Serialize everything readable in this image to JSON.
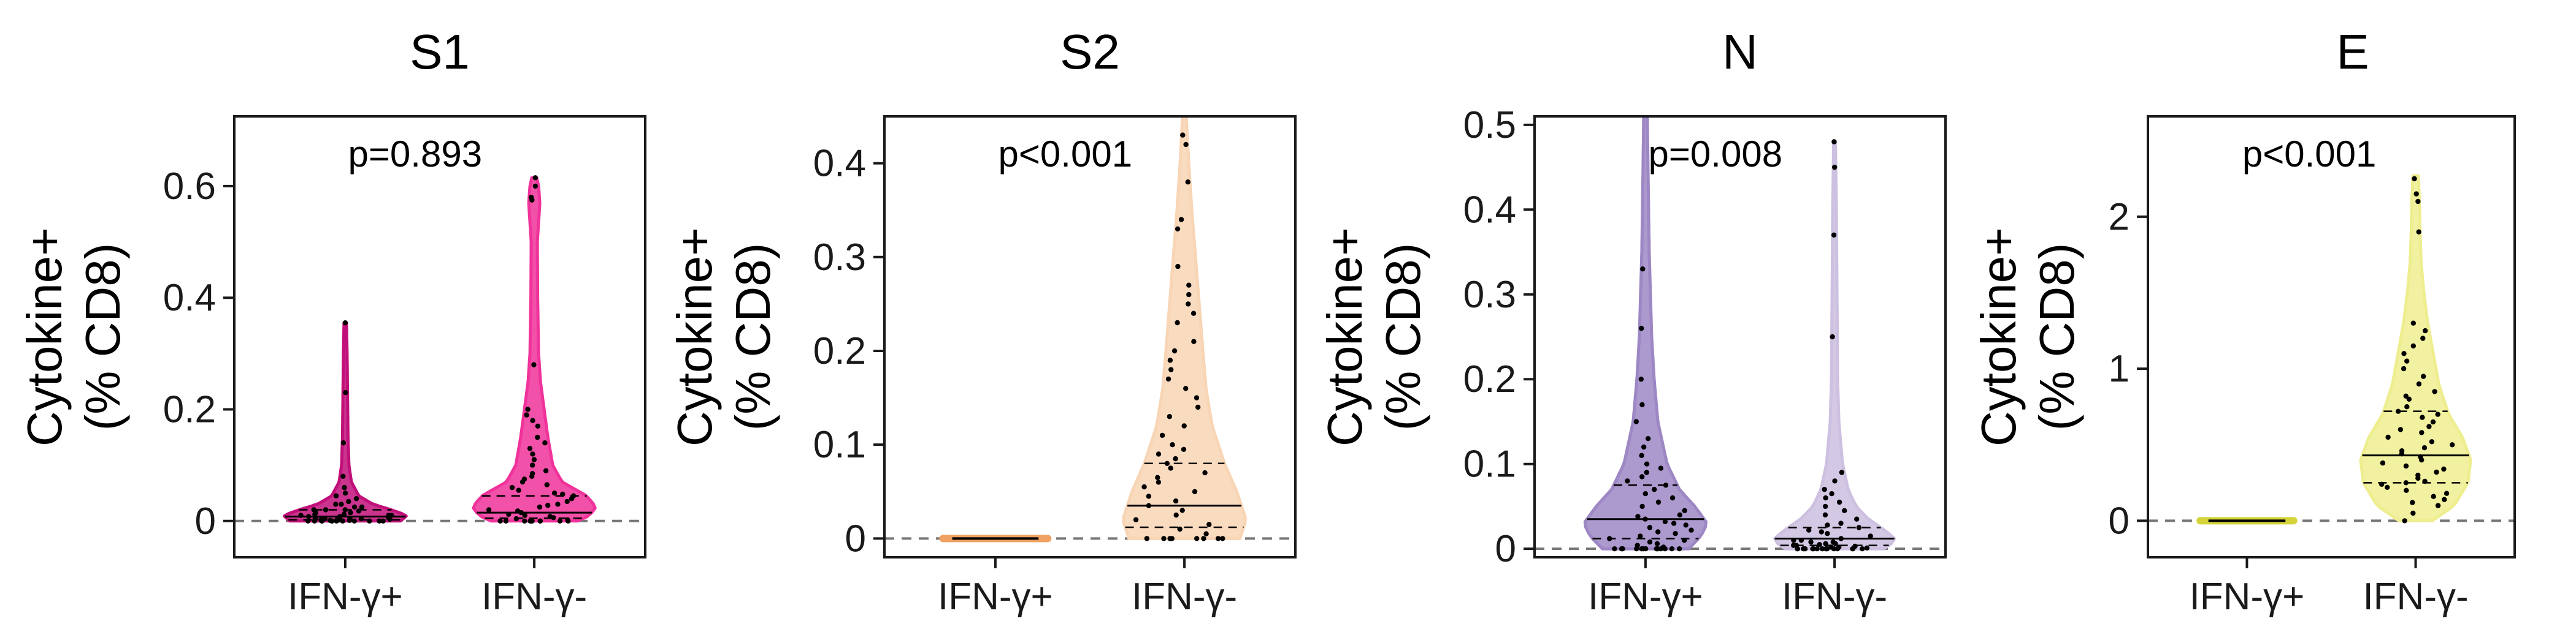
{
  "chart_data": [
    {
      "type": "violin",
      "title": "S1",
      "ylabel_line1": "Cytokine+",
      "ylabel_line2": "(% CD8)",
      "categories": [
        "IFN-γ+",
        "IFN-γ-"
      ],
      "ylim": [
        -0.065,
        0.725
      ],
      "yticks": [
        0,
        0.2,
        0.4,
        0.6
      ],
      "ytick_labels": [
        "0",
        "0.2",
        "0.4",
        "0.6"
      ],
      "annotation": "p=0.893",
      "colors": [
        "#c1107a",
        "#f0339a"
      ],
      "series": [
        {
          "name": "IFN-γ+",
          "max": 0.355,
          "quartiles": [
            0.002,
            0.008,
            0.02
          ],
          "shape": [
            [
              0,
              0.9
            ],
            [
              0.01,
              1.0
            ],
            [
              0.02,
              0.75
            ],
            [
              0.03,
              0.45
            ],
            [
              0.045,
              0.22
            ],
            [
              0.07,
              0.1
            ],
            [
              0.1,
              0.06
            ],
            [
              0.15,
              0.045
            ],
            [
              0.2,
              0.04
            ],
            [
              0.25,
              0.035
            ],
            [
              0.3,
              0.03
            ],
            [
              0.355,
              0.02
            ]
          ],
          "points": [
            0.355,
            0.23,
            0.14,
            0.08,
            0.06,
            0.05,
            0.045,
            0.04,
            0.035,
            0.03,
            0.03,
            0.025,
            0.025,
            0.02,
            0.02,
            0.02,
            0.018,
            0.015,
            0.015,
            0.012,
            0.012,
            0.01,
            0.01,
            0.01,
            0.008,
            0.008,
            0.006,
            0.006,
            0.005,
            0.005,
            0.004,
            0.004,
            0.003,
            0.003,
            0.002,
            0.002,
            0.001,
            0.001,
            0,
            0,
            0,
            0,
            0,
            0,
            0,
            0,
            0,
            0,
            0,
            0
          ]
        },
        {
          "name": "IFN-γ-",
          "max": 0.615,
          "quartiles": [
            0.005,
            0.015,
            0.045
          ],
          "shape": [
            [
              0,
              0.7
            ],
            [
              0.01,
              0.9
            ],
            [
              0.025,
              1.0
            ],
            [
              0.045,
              0.85
            ],
            [
              0.07,
              0.45
            ],
            [
              0.1,
              0.3
            ],
            [
              0.15,
              0.22
            ],
            [
              0.2,
              0.16
            ],
            [
              0.25,
              0.1
            ],
            [
              0.3,
              0.07
            ],
            [
              0.4,
              0.055
            ],
            [
              0.5,
              0.05
            ],
            [
              0.57,
              0.09
            ],
            [
              0.6,
              0.07
            ],
            [
              0.615,
              0.04
            ]
          ],
          "points": [
            0.615,
            0.6,
            0.58,
            0.575,
            0.28,
            0.2,
            0.19,
            0.18,
            0.17,
            0.15,
            0.14,
            0.13,
            0.12,
            0.11,
            0.1,
            0.09,
            0.085,
            0.08,
            0.075,
            0.07,
            0.065,
            0.06,
            0.055,
            0.05,
            0.048,
            0.045,
            0.04,
            0.035,
            0.03,
            0.028,
            0.025,
            0.02,
            0.018,
            0.015,
            0.012,
            0.01,
            0.008,
            0.006,
            0.004,
            0.002,
            0,
            0,
            0,
            0,
            0,
            0,
            0,
            0,
            0,
            0
          ]
        }
      ]
    },
    {
      "type": "violin",
      "title": "S2",
      "ylabel_line1": "Cytokine+",
      "ylabel_line2": "(% CD8)",
      "categories": [
        "IFN-γ+",
        "IFN-γ-"
      ],
      "ylim": [
        -0.02,
        0.45
      ],
      "yticks": [
        0,
        0.1,
        0.2,
        0.3,
        0.4
      ],
      "ytick_labels": [
        "0",
        "0.1",
        "0.2",
        "0.3",
        "0.4"
      ],
      "annotation": "p<0.001",
      "colors": [
        "#f0a060",
        "#f8d5b5"
      ],
      "series": [
        {
          "name": "IFN-γ+",
          "max": 0,
          "flat": true,
          "points": []
        },
        {
          "name": "IFN-γ-",
          "max": 0.45,
          "quartiles": [
            0.012,
            0.035,
            0.08
          ],
          "shape": [
            [
              0,
              0.9
            ],
            [
              0.02,
              1.0
            ],
            [
              0.05,
              0.85
            ],
            [
              0.08,
              0.65
            ],
            [
              0.12,
              0.45
            ],
            [
              0.16,
              0.35
            ],
            [
              0.2,
              0.3
            ],
            [
              0.25,
              0.24
            ],
            [
              0.3,
              0.18
            ],
            [
              0.35,
              0.12
            ],
            [
              0.4,
              0.07
            ],
            [
              0.45,
              0.03
            ]
          ],
          "points": [
            0.43,
            0.42,
            0.38,
            0.34,
            0.33,
            0.29,
            0.27,
            0.26,
            0.25,
            0.24,
            0.23,
            0.21,
            0.2,
            0.19,
            0.18,
            0.17,
            0.16,
            0.15,
            0.14,
            0.13,
            0.12,
            0.11,
            0.1,
            0.095,
            0.09,
            0.085,
            0.08,
            0.075,
            0.07,
            0.065,
            0.06,
            0.055,
            0.05,
            0.045,
            0.04,
            0.035,
            0.03,
            0.025,
            0.02,
            0.015,
            0.01,
            0.005,
            0,
            0,
            0,
            0,
            0,
            0,
            0,
            0
          ]
        }
      ]
    },
    {
      "type": "violin",
      "title": "N",
      "ylabel_line1": "Cytokine+",
      "ylabel_line2": "(% CD8)",
      "categories": [
        "IFN-γ+",
        "IFN-γ-"
      ],
      "ylim": [
        -0.01,
        0.51
      ],
      "yticks": [
        0,
        0.1,
        0.2,
        0.3,
        0.4,
        0.5
      ],
      "ytick_labels": [
        "0",
        "0.1",
        "0.2",
        "0.3",
        "0.4",
        "0.5"
      ],
      "annotation": "p=0.008",
      "colors": [
        "#9d87c4",
        "#cdc0e0"
      ],
      "series": [
        {
          "name": "IFN-γ+",
          "max": 0.51,
          "quartiles": [
            0.012,
            0.035,
            0.075
          ],
          "shape": [
            [
              0,
              0.7
            ],
            [
              0.015,
              0.9
            ],
            [
              0.03,
              1.0
            ],
            [
              0.05,
              0.8
            ],
            [
              0.07,
              0.55
            ],
            [
              0.1,
              0.35
            ],
            [
              0.15,
              0.2
            ],
            [
              0.2,
              0.14
            ],
            [
              0.25,
              0.1
            ],
            [
              0.3,
              0.08
            ],
            [
              0.35,
              0.06
            ],
            [
              0.4,
              0.05
            ],
            [
              0.45,
              0.04
            ],
            [
              0.51,
              0.03
            ]
          ],
          "points": [
            0.33,
            0.26,
            0.2,
            0.17,
            0.15,
            0.13,
            0.12,
            0.11,
            0.1,
            0.095,
            0.09,
            0.085,
            0.08,
            0.075,
            0.07,
            0.065,
            0.06,
            0.055,
            0.05,
            0.045,
            0.04,
            0.038,
            0.035,
            0.032,
            0.03,
            0.028,
            0.025,
            0.022,
            0.02,
            0.018,
            0.015,
            0.012,
            0.01,
            0.008,
            0.006,
            0.004,
            0.002,
            0,
            0,
            0,
            0,
            0,
            0,
            0,
            0,
            0,
            0,
            0,
            0,
            0
          ]
        },
        {
          "name": "IFN-γ-",
          "max": 0.48,
          "quartiles": [
            0.004,
            0.012,
            0.025
          ],
          "shape": [
            [
              0,
              0.8
            ],
            [
              0.01,
              1.0
            ],
            [
              0.02,
              0.85
            ],
            [
              0.035,
              0.55
            ],
            [
              0.05,
              0.35
            ],
            [
              0.07,
              0.22
            ],
            [
              0.1,
              0.13
            ],
            [
              0.15,
              0.07
            ],
            [
              0.2,
              0.05
            ],
            [
              0.3,
              0.04
            ],
            [
              0.4,
              0.03
            ],
            [
              0.48,
              0.015
            ]
          ],
          "points": [
            0.48,
            0.45,
            0.37,
            0.25,
            0.09,
            0.08,
            0.07,
            0.065,
            0.06,
            0.055,
            0.05,
            0.045,
            0.04,
            0.035,
            0.03,
            0.028,
            0.025,
            0.022,
            0.02,
            0.018,
            0.015,
            0.012,
            0.01,
            0.01,
            0.008,
            0.008,
            0.006,
            0.006,
            0.005,
            0.004,
            0.004,
            0.003,
            0.002,
            0.002,
            0.001,
            0,
            0,
            0,
            0,
            0,
            0,
            0,
            0,
            0,
            0,
            0,
            0,
            0,
            0,
            0
          ]
        }
      ]
    },
    {
      "type": "violin",
      "title": "E",
      "ylabel_line1": "Cytokine+",
      "ylabel_line2": "(% CD8)",
      "categories": [
        "IFN-γ+",
        "IFN-γ-"
      ],
      "ylim": [
        -0.24,
        2.66
      ],
      "yticks": [
        0,
        1,
        2
      ],
      "ytick_labels": [
        "0",
        "1",
        "2"
      ],
      "annotation": "p<0.001",
      "colors": [
        "#d4d43a",
        "#eeee90"
      ],
      "series": [
        {
          "name": "IFN-γ+",
          "max": 0,
          "flat": true,
          "points": []
        },
        {
          "name": "IFN-γ-",
          "max": 2.27,
          "quartiles": [
            0.25,
            0.43,
            0.72
          ],
          "shape": [
            [
              0,
              0.3
            ],
            [
              0.1,
              0.7
            ],
            [
              0.25,
              0.95
            ],
            [
              0.4,
              1.0
            ],
            [
              0.55,
              0.85
            ],
            [
              0.7,
              0.6
            ],
            [
              0.9,
              0.42
            ],
            [
              1.1,
              0.32
            ],
            [
              1.3,
              0.22
            ],
            [
              1.5,
              0.15
            ],
            [
              1.7,
              0.1
            ],
            [
              1.9,
              0.08
            ],
            [
              2.1,
              0.07
            ],
            [
              2.27,
              0.05
            ]
          ],
          "points": [
            2.25,
            2.15,
            2.1,
            1.9,
            1.3,
            1.25,
            1.2,
            1.15,
            1.1,
            1.05,
            1.0,
            0.95,
            0.9,
            0.85,
            0.82,
            0.8,
            0.75,
            0.72,
            0.7,
            0.68,
            0.65,
            0.62,
            0.6,
            0.58,
            0.55,
            0.52,
            0.5,
            0.48,
            0.46,
            0.44,
            0.42,
            0.4,
            0.38,
            0.36,
            0.34,
            0.32,
            0.3,
            0.28,
            0.26,
            0.25,
            0.24,
            0.22,
            0.2,
            0.18,
            0.16,
            0.14,
            0.12,
            0.1,
            0.05,
            0
          ]
        }
      ]
    }
  ]
}
